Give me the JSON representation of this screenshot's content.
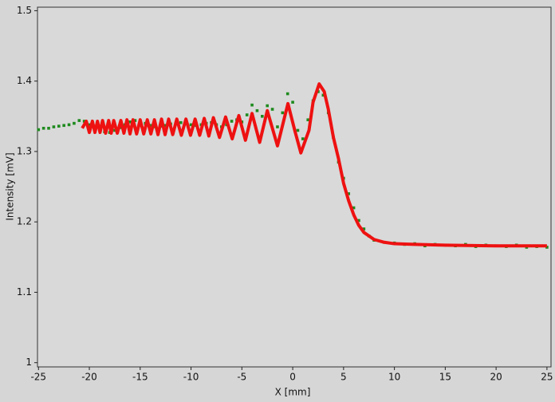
{
  "chart_data": {
    "type": "line",
    "x_label": "X [mm]",
    "y_label": "Intensity [mV]",
    "xlim": [
      -25.1,
      25.4
    ],
    "ylim": [
      0.994,
      1.505
    ],
    "xticks": [
      -25,
      -20,
      -15,
      -10,
      -5,
      0,
      5,
      10,
      15,
      20,
      25
    ],
    "yticks": [
      1,
      1.1,
      1.2,
      1.3,
      1.4,
      1.5
    ],
    "series": [
      {
        "type": "scatter",
        "color": "#1e8a1e",
        "x": [
          -25,
          -24.5,
          -24,
          -23.5,
          -23,
          -22.5,
          -22,
          -21.5,
          -21,
          -20.5,
          -20,
          -19.5,
          -19,
          -18.5,
          -18,
          -17.5,
          -17,
          -16.5,
          -16,
          -15.5,
          -15,
          -14.5,
          -14,
          -13.5,
          -13,
          -12.5,
          -12,
          -11.5,
          -11,
          -10.5,
          -10,
          -9.5,
          -9,
          -8.5,
          -8,
          -7.5,
          -7,
          -6.5,
          -6,
          -5.5,
          -5,
          -4.5,
          -4,
          -3.5,
          -3,
          -2.5,
          -2,
          -1.5,
          -1,
          -0.5,
          0,
          0.5,
          1,
          1.5,
          2,
          2.5,
          3,
          3.5,
          4,
          4.5,
          5,
          5.5,
          6,
          6.5,
          7,
          7.5,
          8,
          9,
          10,
          11,
          12,
          13,
          14,
          15,
          16,
          17,
          18,
          19,
          20,
          21,
          22,
          23,
          24,
          25
        ],
        "values": [
          1.331,
          1.333,
          1.333,
          1.335,
          1.336,
          1.337,
          1.338,
          1.34,
          1.344,
          1.343,
          1.338,
          1.335,
          1.331,
          1.328,
          1.327,
          1.33,
          1.334,
          1.338,
          1.342,
          1.344,
          1.343,
          1.34,
          1.337,
          1.335,
          1.336,
          1.337,
          1.339,
          1.34,
          1.341,
          1.34,
          1.338,
          1.337,
          1.338,
          1.34,
          1.341,
          1.338,
          1.335,
          1.338,
          1.343,
          1.345,
          1.342,
          1.352,
          1.366,
          1.358,
          1.35,
          1.365,
          1.36,
          1.335,
          1.355,
          1.382,
          1.37,
          1.33,
          1.318,
          1.345,
          1.372,
          1.385,
          1.38,
          1.355,
          1.32,
          1.285,
          1.262,
          1.24,
          1.22,
          1.202,
          1.19,
          1.18,
          1.174,
          1.171,
          1.17,
          1.168,
          1.169,
          1.166,
          1.168,
          1.167,
          1.166,
          1.168,
          1.165,
          1.167,
          1.166,
          1.165,
          1.167,
          1.164,
          1.165,
          1.164
        ]
      },
      {
        "type": "line",
        "color": "#ee1111",
        "x": [
          -20.7,
          -20.3,
          -20.0,
          -19.7,
          -19.45,
          -19.2,
          -18.95,
          -18.7,
          -18.4,
          -18.1,
          -17.85,
          -17.6,
          -17.25,
          -16.9,
          -16.6,
          -16.3,
          -16.0,
          -15.7,
          -15.35,
          -15.0,
          -14.65,
          -14.3,
          -13.95,
          -13.6,
          -13.25,
          -12.9,
          -12.55,
          -12.2,
          -11.8,
          -11.4,
          -10.95,
          -10.5,
          -10.05,
          -9.6,
          -9.15,
          -8.7,
          -8.25,
          -7.8,
          -7.2,
          -6.6,
          -5.95,
          -5.3,
          -4.65,
          -4.0,
          -3.25,
          -2.5,
          -1.5,
          -0.47,
          0.2,
          0.8,
          1.6,
          2.0,
          2.6,
          3.1,
          3.5,
          4.0,
          4.5,
          5.0,
          5.5,
          6.0,
          6.5,
          7.0,
          8.0,
          9.0,
          10.0,
          12.0,
          15.0,
          20.0,
          25.0
        ],
        "values": [
          1.333,
          1.343,
          1.327,
          1.343,
          1.327,
          1.343,
          1.327,
          1.344,
          1.326,
          1.344,
          1.326,
          1.344,
          1.326,
          1.344,
          1.326,
          1.345,
          1.325,
          1.345,
          1.325,
          1.345,
          1.325,
          1.345,
          1.325,
          1.345,
          1.324,
          1.346,
          1.324,
          1.346,
          1.324,
          1.346,
          1.323,
          1.346,
          1.323,
          1.346,
          1.323,
          1.347,
          1.322,
          1.348,
          1.32,
          1.349,
          1.318,
          1.351,
          1.316,
          1.354,
          1.313,
          1.358,
          1.308,
          1.368,
          1.33,
          1.298,
          1.33,
          1.37,
          1.396,
          1.385,
          1.36,
          1.32,
          1.29,
          1.255,
          1.23,
          1.21,
          1.195,
          1.185,
          1.175,
          1.171,
          1.169,
          1.168,
          1.167,
          1.166,
          1.166
        ]
      }
    ]
  }
}
